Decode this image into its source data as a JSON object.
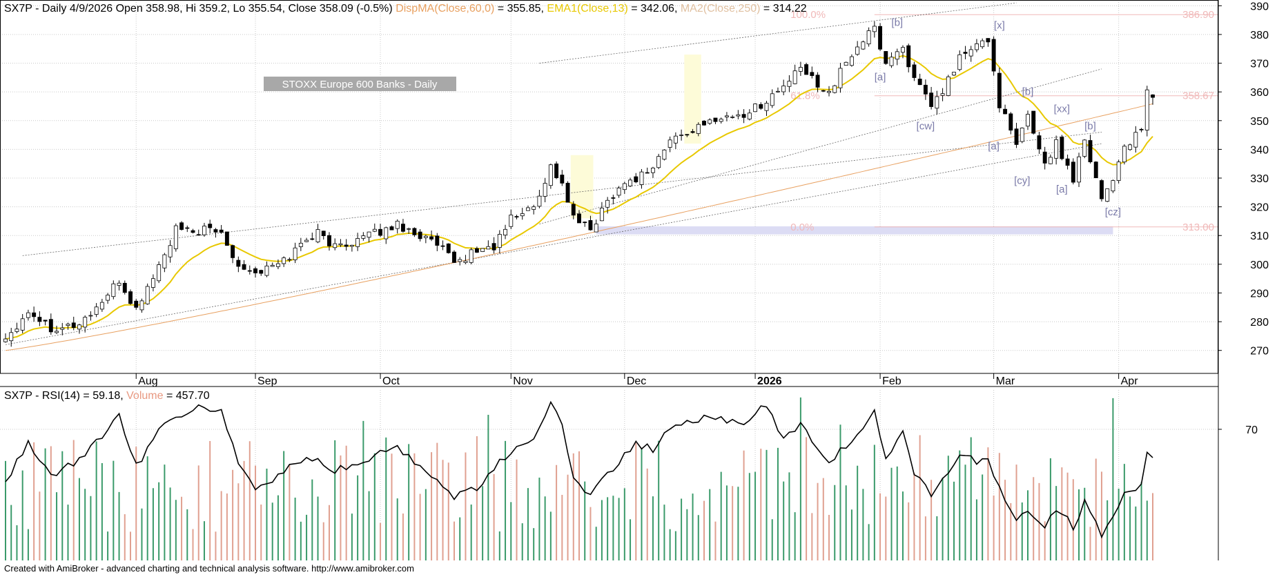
{
  "header": {
    "main_prefix": "SX7P - Daily 4/9/2026 Open 358.98, Hi 359.2, Lo 355.54, Close 358.09 (-0.5%)",
    "dispma_label": "DispMA(Close,60,0)",
    "dispma_value": " = 355.85, ",
    "ema_label": "EMA1(Close,13)",
    "ema_value": " = 342.06, ",
    "ma2_label": "MA2(Close,250)",
    "ma2_value": " = 314.22",
    "rsi_prefix": "SX7P - RSI(14) = 59.18, ",
    "volume_label": "Volume",
    "volume_value": " = 457.70"
  },
  "chart_title_box": "STOXX Europe 600 Banks - Daily",
  "footer_text": "Created with AmiBroker - advanced charting and technical analysis software. http://www.amibroker.com",
  "colors": {
    "up_volume": "#3a9a6a",
    "down_volume": "#e0a090",
    "ema": "#e8c800",
    "ma2": "#e8a060",
    "fib": "#f0b8b8",
    "wave": "#7a7aa8",
    "grid": "#c8c8c8"
  },
  "chart_data": [
    {
      "type": "candlestick",
      "symbol": "SX7P",
      "timeframe": "Daily",
      "x_month_labels": [
        "Aug",
        "Sep",
        "Oct",
        "Nov",
        "Dec",
        "2026",
        "Feb",
        "Mar",
        "Apr"
      ],
      "y_ticks": [
        270,
        280,
        290,
        300,
        310,
        320,
        330,
        340,
        350,
        360,
        370,
        380,
        390
      ],
      "ylim": [
        262,
        392
      ],
      "last_candle": {
        "open": 358.98,
        "high": 359.2,
        "low": 355.54,
        "close": 358.09
      },
      "ema13_last": 342.06,
      "dispma60_last": 355.85,
      "ma250_last": 314.22,
      "close_waypoints": [
        [
          "2025-07-01",
          274
        ],
        [
          "2025-07-07",
          284
        ],
        [
          "2025-07-11",
          278
        ],
        [
          "2025-07-18",
          279
        ],
        [
          "2025-07-24",
          287
        ],
        [
          "2025-07-29",
          294
        ],
        [
          "2025-08-01",
          284
        ],
        [
          "2025-08-05",
          292
        ],
        [
          "2025-08-08",
          303
        ],
        [
          "2025-08-12",
          312
        ],
        [
          "2025-08-15",
          311
        ],
        [
          "2025-08-19",
          312
        ],
        [
          "2025-08-22",
          311
        ],
        [
          "2025-08-27",
          300
        ],
        [
          "2025-09-01",
          297
        ],
        [
          "2025-09-05",
          300
        ],
        [
          "2025-09-09",
          303
        ],
        [
          "2025-09-12",
          309
        ],
        [
          "2025-09-16",
          311
        ],
        [
          "2025-09-19",
          306
        ],
        [
          "2025-09-24",
          308
        ],
        [
          "2025-09-29",
          310
        ],
        [
          "2025-10-02",
          312
        ],
        [
          "2025-10-06",
          314
        ],
        [
          "2025-10-09",
          311
        ],
        [
          "2025-10-13",
          309
        ],
        [
          "2025-10-16",
          305
        ],
        [
          "2025-10-20",
          300
        ],
        [
          "2025-10-24",
          305
        ],
        [
          "2025-10-29",
          306
        ],
        [
          "2025-11-03",
          316
        ],
        [
          "2025-11-07",
          320
        ],
        [
          "2025-11-12",
          334
        ],
        [
          "2025-11-14",
          328
        ],
        [
          "2025-11-18",
          316
        ],
        [
          "2025-11-21",
          312
        ],
        [
          "2025-11-26",
          322
        ],
        [
          "2025-11-28",
          327
        ],
        [
          "2025-12-03",
          330
        ],
        [
          "2025-12-08",
          334
        ],
        [
          "2025-12-11",
          343
        ],
        [
          "2025-12-16",
          346
        ],
        [
          "2025-12-19",
          348
        ],
        [
          "2025-12-23",
          351
        ],
        [
          "2025-12-30",
          352
        ],
        [
          "2026-01-05",
          357
        ],
        [
          "2026-01-08",
          362
        ],
        [
          "2026-01-13",
          368
        ],
        [
          "2026-01-16",
          363
        ],
        [
          "2026-01-20",
          360
        ],
        [
          "2026-01-23",
          370
        ],
        [
          "2026-01-27",
          376
        ],
        [
          "2026-01-30",
          382
        ],
        [
          "2026-02-03",
          370
        ],
        [
          "2026-02-06",
          376
        ],
        [
          "2026-02-10",
          364
        ],
        [
          "2026-02-13",
          355
        ],
        [
          "2026-02-17",
          360
        ],
        [
          "2026-02-20",
          372
        ],
        [
          "2026-02-25",
          376
        ],
        [
          "2026-02-27",
          378
        ],
        [
          "2026-03-03",
          356
        ],
        [
          "2026-03-06",
          341
        ],
        [
          "2026-03-10",
          352
        ],
        [
          "2026-03-13",
          335
        ],
        [
          "2026-03-17",
          342
        ],
        [
          "2026-03-20",
          330
        ],
        [
          "2026-03-24",
          344
        ],
        [
          "2026-03-27",
          323
        ],
        [
          "2026-03-31",
          330
        ],
        [
          "2026-04-02",
          341
        ],
        [
          "2026-04-07",
          346
        ],
        [
          "2026-04-08",
          360
        ],
        [
          "2026-04-09",
          358.09
        ]
      ],
      "horizontal_levels": [
        {
          "value": 386.9,
          "label": "386.90"
        },
        {
          "value": 358.67,
          "label": "358.67"
        },
        {
          "value": 313.0,
          "label": "313.00"
        }
      ],
      "fib_labels": [
        {
          "value": 386.9,
          "label": "100.0%"
        },
        {
          "value": 358.67,
          "label": "61.8%"
        },
        {
          "value": 313.0,
          "label": "0.0%"
        }
      ],
      "wave_labels": [
        {
          "date": "2026-02-05",
          "price": 383,
          "label": "[b]"
        },
        {
          "date": "2026-02-02",
          "price": 364,
          "label": "[a]"
        },
        {
          "date": "2026-02-12",
          "price": 347,
          "label": "[cw]"
        },
        {
          "date": "2026-03-03",
          "price": 382,
          "label": "[x]"
        },
        {
          "date": "2026-03-10",
          "price": 359,
          "label": "[b]"
        },
        {
          "date": "2026-03-02",
          "price": 340,
          "label": "[a]"
        },
        {
          "date": "2026-03-18",
          "price": 353,
          "label": "[xx]"
        },
        {
          "date": "2026-03-25",
          "price": 347,
          "label": "[b]"
        },
        {
          "date": "2026-03-09",
          "price": 328,
          "label": "[cy]"
        },
        {
          "date": "2026-03-18",
          "price": 325,
          "label": "[a]"
        },
        {
          "date": "2026-03-31",
          "price": 317,
          "label": "[cz]"
        }
      ]
    },
    {
      "type": "line+bar",
      "indicator": "RSI(14)",
      "rsi_last": 59.18,
      "volume_last": 457.7,
      "y_ticks": [
        70
      ],
      "rsi_waypoints": [
        [
          "2025-07-01",
          50
        ],
        [
          "2025-07-07",
          65
        ],
        [
          "2025-07-11",
          52
        ],
        [
          "2025-07-18",
          58
        ],
        [
          "2025-07-29",
          75
        ],
        [
          "2025-08-01",
          56
        ],
        [
          "2025-08-08",
          72
        ],
        [
          "2025-08-15",
          78
        ],
        [
          "2025-08-22",
          77
        ],
        [
          "2025-08-27",
          57
        ],
        [
          "2025-09-01",
          47
        ],
        [
          "2025-09-05",
          52
        ],
        [
          "2025-09-12",
          60
        ],
        [
          "2025-09-19",
          54
        ],
        [
          "2025-10-06",
          63
        ],
        [
          "2025-10-13",
          55
        ],
        [
          "2025-10-20",
          44
        ],
        [
          "2025-10-24",
          48
        ],
        [
          "2025-11-03",
          62
        ],
        [
          "2025-11-07",
          65
        ],
        [
          "2025-11-12",
          79
        ],
        [
          "2025-11-14",
          72
        ],
        [
          "2025-11-18",
          52
        ],
        [
          "2025-11-21",
          45
        ],
        [
          "2025-11-28",
          57
        ],
        [
          "2025-12-03",
          65
        ],
        [
          "2025-12-08",
          62
        ],
        [
          "2025-12-11",
          70
        ],
        [
          "2025-12-19",
          74
        ],
        [
          "2025-12-30",
          73
        ],
        [
          "2026-01-05",
          79
        ],
        [
          "2026-01-08",
          66
        ],
        [
          "2026-01-13",
          72
        ],
        [
          "2026-01-16",
          62
        ],
        [
          "2026-01-20",
          58
        ],
        [
          "2026-01-27",
          68
        ],
        [
          "2026-01-30",
          76
        ],
        [
          "2026-02-03",
          58
        ],
        [
          "2026-02-06",
          68
        ],
        [
          "2026-02-10",
          54
        ],
        [
          "2026-02-13",
          45
        ],
        [
          "2026-02-17",
          52
        ],
        [
          "2026-02-20",
          60
        ],
        [
          "2026-02-25",
          58
        ],
        [
          "2026-02-27",
          58
        ],
        [
          "2026-03-03",
          48
        ],
        [
          "2026-03-06",
          35
        ],
        [
          "2026-03-10",
          40
        ],
        [
          "2026-03-13",
          32
        ],
        [
          "2026-03-17",
          40
        ],
        [
          "2026-03-20",
          33
        ],
        [
          "2026-03-24",
          42
        ],
        [
          "2026-03-27",
          30
        ],
        [
          "2026-03-31",
          38
        ],
        [
          "2026-04-02",
          46
        ],
        [
          "2026-04-07",
          49
        ],
        [
          "2026-04-08",
          60
        ],
        [
          "2026-04-09",
          59.18
        ]
      ]
    }
  ]
}
